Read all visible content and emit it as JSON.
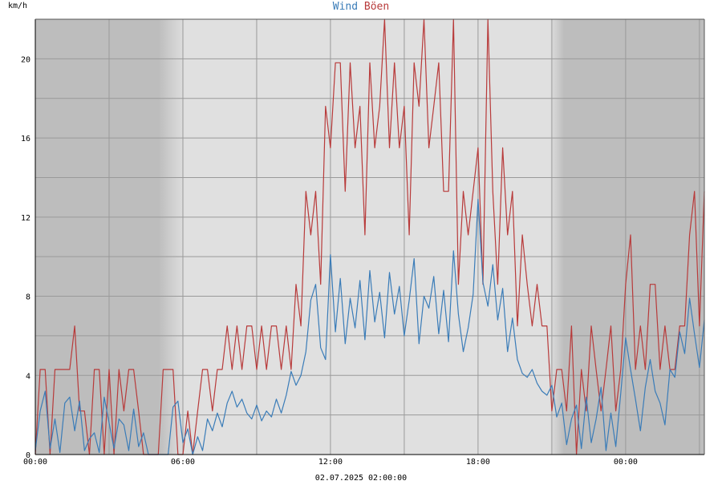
{
  "chart_data": {
    "type": "line",
    "title": "",
    "ylabel": "km/h",
    "xlabel": "02.07.2025 02:00:00",
    "x_range_hours": [
      0,
      27.2
    ],
    "ylim": [
      0,
      22
    ],
    "y_ticks": [
      0,
      4,
      8,
      12,
      16,
      20
    ],
    "y_tick_labels": [
      "0",
      "4",
      "8",
      "12",
      "16",
      "20"
    ],
    "x_ticks_hours": [
      0,
      6,
      12,
      18,
      24
    ],
    "x_tick_labels": [
      "00:00",
      "06:00",
      "12:00",
      "18:00",
      "00:00"
    ],
    "grid": true,
    "legend": "top-center",
    "colors": {
      "night_band": "#bdbdbd",
      "day_band": "#e0e0e0",
      "grid": "#9a9a9a",
      "wind": "#3a7cb8",
      "gust": "#b83a3a"
    },
    "night_segments_hours": [
      [
        0,
        5
      ],
      [
        21,
        27.2
      ]
    ],
    "series": [
      {
        "name": "Wind",
        "color": "#3a7cb8",
        "x": [
          0.0,
          0.2,
          0.4,
          0.6,
          0.8,
          1.0,
          1.2,
          1.4,
          1.6,
          1.8,
          2.0,
          2.2,
          2.4,
          2.6,
          2.8,
          3.0,
          3.2,
          3.4,
          3.6,
          3.8,
          4.0,
          4.2,
          4.4,
          4.6,
          4.8,
          5.0,
          5.2,
          5.4,
          5.6,
          5.8,
          6.0,
          6.2,
          6.4,
          6.6,
          6.8,
          7.0,
          7.2,
          7.4,
          7.6,
          7.8,
          8.0,
          8.2,
          8.4,
          8.6,
          8.8,
          9.0,
          9.2,
          9.4,
          9.6,
          9.8,
          10.0,
          10.2,
          10.4,
          10.6,
          10.8,
          11.0,
          11.2,
          11.4,
          11.6,
          11.8,
          12.0,
          12.2,
          12.4,
          12.6,
          12.8,
          13.0,
          13.2,
          13.4,
          13.6,
          13.8,
          14.0,
          14.2,
          14.4,
          14.6,
          14.8,
          15.0,
          15.2,
          15.4,
          15.6,
          15.8,
          16.0,
          16.2,
          16.4,
          16.6,
          16.8,
          17.0,
          17.2,
          17.4,
          17.6,
          17.8,
          18.0,
          18.2,
          18.4,
          18.6,
          18.8,
          19.0,
          19.2,
          19.4,
          19.6,
          19.8,
          20.0,
          20.2,
          20.4,
          20.6,
          20.8,
          21.0,
          21.2,
          21.4,
          21.6,
          21.8,
          22.0,
          22.2,
          22.4,
          22.6,
          22.8,
          23.0,
          23.2,
          23.4,
          23.6,
          23.8,
          24.0,
          24.2,
          24.4,
          24.6,
          24.8,
          25.0,
          25.2,
          25.4,
          25.6,
          25.8,
          26.0,
          26.2,
          26.4,
          26.6,
          26.8,
          27.0,
          27.2
        ],
        "values": [
          0.2,
          2.2,
          3.2,
          0.3,
          1.8,
          0.1,
          2.6,
          2.9,
          1.2,
          2.7,
          0.2,
          0.8,
          1.1,
          0.1,
          2.9,
          1.6,
          0.3,
          1.8,
          1.5,
          0.2,
          2.3,
          0.4,
          1.1,
          0.0,
          0.0,
          0.0,
          0.0,
          0.0,
          2.4,
          2.7,
          0.6,
          1.3,
          0.0,
          0.9,
          0.2,
          1.8,
          1.2,
          2.1,
          1.4,
          2.6,
          3.2,
          2.4,
          2.8,
          2.1,
          1.8,
          2.5,
          1.7,
          2.2,
          1.9,
          2.8,
          2.1,
          3.0,
          4.2,
          3.5,
          4.0,
          5.2,
          7.8,
          8.6,
          5.4,
          4.8,
          10.1,
          6.2,
          8.9,
          5.6,
          7.9,
          6.4,
          8.8,
          5.8,
          9.3,
          6.7,
          8.2,
          5.9,
          9.2,
          7.1,
          8.5,
          6.0,
          7.8,
          9.9,
          5.6,
          8.0,
          7.4,
          9.0,
          6.1,
          8.3,
          5.7,
          10.3,
          7.1,
          5.2,
          6.4,
          8.1,
          12.9,
          8.7,
          7.5,
          9.6,
          6.8,
          8.4,
          5.2,
          6.9,
          4.8,
          4.1,
          3.9,
          4.3,
          3.6,
          3.2,
          3.0,
          3.5,
          1.9,
          2.6,
          0.5,
          1.8,
          2.5,
          0.3,
          2.9,
          0.6,
          1.8,
          3.4,
          0.2,
          2.1,
          0.4,
          3.1,
          5.9,
          4.3,
          2.8,
          1.2,
          3.4,
          4.8,
          3.2,
          2.6,
          1.5,
          4.3,
          3.9,
          6.2,
          5.1,
          7.9,
          6.1,
          4.4,
          6.8
        ]
      },
      {
        "name": "Böen",
        "color": "#b83a3a",
        "x": [
          0.0,
          0.2,
          0.4,
          0.6,
          0.8,
          1.0,
          1.2,
          1.4,
          1.6,
          1.8,
          2.0,
          2.2,
          2.4,
          2.6,
          2.8,
          3.0,
          3.2,
          3.4,
          3.6,
          3.8,
          4.0,
          4.2,
          4.4,
          4.6,
          4.8,
          5.0,
          5.2,
          5.4,
          5.6,
          5.8,
          6.0,
          6.2,
          6.4,
          6.6,
          6.8,
          7.0,
          7.2,
          7.4,
          7.6,
          7.8,
          8.0,
          8.2,
          8.4,
          8.6,
          8.8,
          9.0,
          9.2,
          9.4,
          9.6,
          9.8,
          10.0,
          10.2,
          10.4,
          10.6,
          10.8,
          11.0,
          11.2,
          11.4,
          11.6,
          11.8,
          12.0,
          12.2,
          12.4,
          12.6,
          12.8,
          13.0,
          13.2,
          13.4,
          13.6,
          13.8,
          14.0,
          14.2,
          14.4,
          14.6,
          14.8,
          15.0,
          15.2,
          15.4,
          15.6,
          15.8,
          16.0,
          16.2,
          16.4,
          16.6,
          16.8,
          17.0,
          17.2,
          17.4,
          17.6,
          17.8,
          18.0,
          18.2,
          18.4,
          18.6,
          18.8,
          19.0,
          19.2,
          19.4,
          19.6,
          19.8,
          20.0,
          20.2,
          20.4,
          20.6,
          20.8,
          21.0,
          21.2,
          21.4,
          21.6,
          21.8,
          22.0,
          22.2,
          22.4,
          22.6,
          22.8,
          23.0,
          23.2,
          23.4,
          23.6,
          23.8,
          24.0,
          24.2,
          24.4,
          24.6,
          24.8,
          25.0,
          25.2,
          25.4,
          25.6,
          25.8,
          26.0,
          26.2,
          26.4,
          26.6,
          26.8,
          27.0,
          27.2
        ],
        "values": [
          0.0,
          4.3,
          4.3,
          0.0,
          4.3,
          4.3,
          4.3,
          4.3,
          6.5,
          2.2,
          2.2,
          0.0,
          4.3,
          4.3,
          0.0,
          4.3,
          0.0,
          4.3,
          2.2,
          4.3,
          4.3,
          2.2,
          0.0,
          0.0,
          0.0,
          0.0,
          4.3,
          4.3,
          4.3,
          0.0,
          0.0,
          2.2,
          0.0,
          2.2,
          4.3,
          4.3,
          2.2,
          4.3,
          4.3,
          6.5,
          4.3,
          6.5,
          4.3,
          6.5,
          6.5,
          4.3,
          6.5,
          4.3,
          6.5,
          6.5,
          4.3,
          6.5,
          4.3,
          8.6,
          6.5,
          13.3,
          11.1,
          13.3,
          8.6,
          17.6,
          15.5,
          19.8,
          19.8,
          13.3,
          19.8,
          15.5,
          17.6,
          11.1,
          19.8,
          15.5,
          17.6,
          22.0,
          15.5,
          19.8,
          15.5,
          17.6,
          11.1,
          19.8,
          17.6,
          22.0,
          15.5,
          17.6,
          19.8,
          13.3,
          13.3,
          22.0,
          8.6,
          13.3,
          11.1,
          13.3,
          15.5,
          8.6,
          22.0,
          13.3,
          8.6,
          15.5,
          11.1,
          13.3,
          6.5,
          11.1,
          8.6,
          6.5,
          8.6,
          6.5,
          6.5,
          2.2,
          4.3,
          4.3,
          2.2,
          6.5,
          0.0,
          4.3,
          2.2,
          6.5,
          4.3,
          2.2,
          4.3,
          6.5,
          2.2,
          4.3,
          8.6,
          11.1,
          4.3,
          6.5,
          4.3,
          8.6,
          8.6,
          4.3,
          6.5,
          4.3,
          4.3,
          6.5,
          6.5,
          11.1,
          13.3,
          6.5,
          13.3
        ]
      }
    ]
  }
}
